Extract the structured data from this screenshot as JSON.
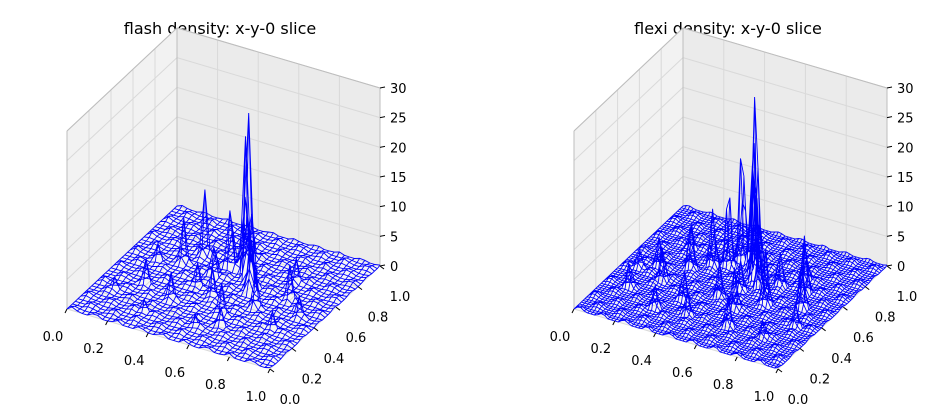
{
  "chart_data": [
    {
      "type": "surface-wireframe",
      "title": "flash density: x-y-0 slice",
      "xlabel": "",
      "ylabel": "",
      "zlabel": "",
      "xlim": [
        0.0,
        1.0
      ],
      "ylim": [
        0.0,
        1.0
      ],
      "zlim": [
        0,
        30
      ],
      "x_ticks": [
        "0.0",
        "0.2",
        "0.4",
        "0.6",
        "0.8",
        "1.0"
      ],
      "y_ticks": [
        "0.0",
        "0.2",
        "0.4",
        "0.6",
        "0.8",
        "1.0"
      ],
      "z_ticks": [
        "0",
        "5",
        "10",
        "15",
        "20",
        "25",
        "30"
      ],
      "grid": true,
      "wire_color": "#0000ff",
      "grid_resolution": 40,
      "peaks": [
        {
          "x": 0.47,
          "y": 0.78,
          "z": 29
        },
        {
          "x": 0.5,
          "y": 0.7,
          "z": 22
        },
        {
          "x": 0.53,
          "y": 0.66,
          "z": 19
        },
        {
          "x": 0.56,
          "y": 0.61,
          "z": 16
        },
        {
          "x": 0.45,
          "y": 0.66,
          "z": 14
        },
        {
          "x": 0.6,
          "y": 0.57,
          "z": 13
        },
        {
          "x": 0.3,
          "y": 0.7,
          "z": 11
        },
        {
          "x": 0.62,
          "y": 0.52,
          "z": 10
        },
        {
          "x": 0.42,
          "y": 0.56,
          "z": 8
        },
        {
          "x": 0.25,
          "y": 0.6,
          "z": 7
        },
        {
          "x": 0.7,
          "y": 0.42,
          "z": 6
        },
        {
          "x": 0.8,
          "y": 0.55,
          "z": 6
        },
        {
          "x": 0.6,
          "y": 0.3,
          "z": 5
        },
        {
          "x": 0.2,
          "y": 0.35,
          "z": 4
        },
        {
          "x": 0.35,
          "y": 0.3,
          "z": 4
        },
        {
          "x": 0.5,
          "y": 0.4,
          "z": 5
        },
        {
          "x": 0.75,
          "y": 0.7,
          "z": 4
        },
        {
          "x": 0.85,
          "y": 0.3,
          "z": 3
        },
        {
          "x": 0.4,
          "y": 0.45,
          "z": 4
        },
        {
          "x": 0.15,
          "y": 0.55,
          "z": 3
        },
        {
          "x": 0.65,
          "y": 0.2,
          "z": 3
        },
        {
          "x": 0.55,
          "y": 0.15,
          "z": 2
        },
        {
          "x": 0.3,
          "y": 0.15,
          "z": 2
        },
        {
          "x": 0.9,
          "y": 0.45,
          "z": 3
        },
        {
          "x": 0.1,
          "y": 0.25,
          "z": 2
        }
      ]
    },
    {
      "type": "surface-wireframe",
      "title": "flexi density: x-y-0 slice",
      "xlabel": "",
      "ylabel": "",
      "zlabel": "",
      "xlim": [
        0.0,
        1.0
      ],
      "ylim": [
        0.0,
        1.0
      ],
      "zlim": [
        0,
        30
      ],
      "x_ticks": [
        "0.0",
        "0.2",
        "0.4",
        "0.6",
        "0.8",
        "1.0"
      ],
      "y_ticks": [
        "0.0",
        "0.2",
        "0.4",
        "0.6",
        "0.8",
        "1.0"
      ],
      "z_ticks": [
        "0",
        "5",
        "10",
        "15",
        "20",
        "25",
        "30"
      ],
      "grid": true,
      "wire_color": "#0000ff",
      "grid_resolution": 60,
      "peaks": [
        {
          "x": 0.47,
          "y": 0.78,
          "z": 29
        },
        {
          "x": 0.5,
          "y": 0.71,
          "z": 24
        },
        {
          "x": 0.44,
          "y": 0.72,
          "z": 21
        },
        {
          "x": 0.54,
          "y": 0.65,
          "z": 18
        },
        {
          "x": 0.57,
          "y": 0.6,
          "z": 15
        },
        {
          "x": 0.41,
          "y": 0.65,
          "z": 13
        },
        {
          "x": 0.62,
          "y": 0.55,
          "z": 12
        },
        {
          "x": 0.35,
          "y": 0.62,
          "z": 10
        },
        {
          "x": 0.8,
          "y": 0.62,
          "z": 10
        },
        {
          "x": 0.7,
          "y": 0.45,
          "z": 9
        },
        {
          "x": 0.28,
          "y": 0.55,
          "z": 8
        },
        {
          "x": 0.85,
          "y": 0.5,
          "z": 7
        },
        {
          "x": 0.6,
          "y": 0.35,
          "z": 7
        },
        {
          "x": 0.5,
          "y": 0.4,
          "z": 6
        },
        {
          "x": 0.22,
          "y": 0.4,
          "z": 6
        },
        {
          "x": 0.38,
          "y": 0.3,
          "z": 5
        },
        {
          "x": 0.75,
          "y": 0.72,
          "z": 6
        },
        {
          "x": 0.15,
          "y": 0.5,
          "z": 5
        },
        {
          "x": 0.9,
          "y": 0.35,
          "z": 4
        },
        {
          "x": 0.65,
          "y": 0.2,
          "z": 5
        },
        {
          "x": 0.45,
          "y": 0.2,
          "z": 4
        },
        {
          "x": 0.3,
          "y": 0.18,
          "z": 4
        },
        {
          "x": 0.12,
          "y": 0.28,
          "z": 4
        },
        {
          "x": 0.55,
          "y": 0.5,
          "z": 5
        },
        {
          "x": 0.68,
          "y": 0.62,
          "z": 6
        },
        {
          "x": 0.2,
          "y": 0.7,
          "z": 4
        },
        {
          "x": 0.82,
          "y": 0.2,
          "z": 3
        },
        {
          "x": 0.08,
          "y": 0.45,
          "z": 3
        }
      ]
    }
  ]
}
